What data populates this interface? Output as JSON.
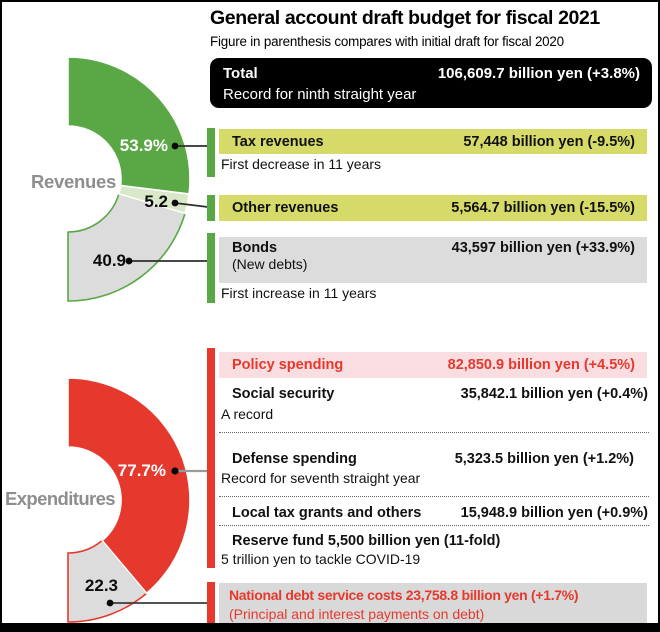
{
  "header": {
    "title": "General account draft budget for fiscal 2021",
    "subtitle": "Figure in parenthesis compares with initial draft for fiscal 2020"
  },
  "total_box": {
    "label": "Total",
    "value": "106,609.7 billion yen (+3.8%)",
    "note": "Record for ninth straight year"
  },
  "revenue_rows": {
    "tax": {
      "label": "Tax revenues",
      "value": "57,448 billion yen (-9.5%)",
      "note": "First decrease in 11 years"
    },
    "other": {
      "label": "Other revenues",
      "value": "5,564.7 billion yen (-15.5%)"
    },
    "bonds": {
      "label": "Bonds",
      "sublabel": "(New debts)",
      "value": "43,597 billion yen (+33.9%)",
      "note": "First increase in 11 years"
    }
  },
  "expenditure_rows": {
    "policy": {
      "label": "Policy spending",
      "value": "82,850.9 billion yen (+4.5%)"
    },
    "social": {
      "label": "Social security",
      "value": "35,842.1 billion yen (+0.4%)",
      "note": "A record"
    },
    "defense": {
      "label": "Defense spending",
      "value": "5,323.5 billion yen (+1.2%)",
      "note": "Record for seventh straight year"
    },
    "local_tax": {
      "label": "Local tax grants and others",
      "value": "15,948.9 billion yen (+0.9%)"
    },
    "reserve": {
      "label": "Reserve fund 5,500 billion yen (11-fold)",
      "note": "5 trillion yen to tackle COVID-19"
    },
    "debt": {
      "label": "National debt service costs 23,758.8 billion yen (+1.7%)",
      "note": "(Principal and interest payments on debt)"
    }
  },
  "colors": {
    "green": "#5aa745",
    "light_green": "#d9e8c8",
    "yellow_green": "#d6da69",
    "grey": "#dcdcdc",
    "red": "#e6392e",
    "pink": "#fadde1",
    "black": "#000000"
  },
  "chart_data": [
    {
      "type": "pie",
      "shape": "half-donut",
      "title": "Revenues",
      "unit": "%",
      "total": 100,
      "start_angle_deg": 0,
      "end_angle_deg": 180,
      "slices": [
        {
          "label": "Tax revenues",
          "value": 53.9,
          "pct_label": "53.9%",
          "color": "#5aa745",
          "stroke": "#ffffff"
        },
        {
          "label": "Other revenues",
          "value": 5.2,
          "pct_label": "5.2",
          "color": "#d9e8c8",
          "stroke": "#ffffff"
        },
        {
          "label": "Bonds (New debts)",
          "value": 40.9,
          "pct_label": "40.9",
          "color": "#dcdcdc",
          "stroke": "#5aa745"
        }
      ]
    },
    {
      "type": "pie",
      "shape": "half-donut",
      "title": "Expenditures",
      "unit": "%",
      "total": 100,
      "start_angle_deg": 0,
      "end_angle_deg": 180,
      "slices": [
        {
          "label": "Policy spending",
          "value": 77.7,
          "pct_label": "77.7%",
          "color": "#e6392e",
          "stroke": "#ffffff"
        },
        {
          "label": "National debt service costs",
          "value": 22.3,
          "pct_label": "22.3",
          "color": "#dcdcdc",
          "stroke": "#e6392e"
        }
      ]
    }
  ]
}
